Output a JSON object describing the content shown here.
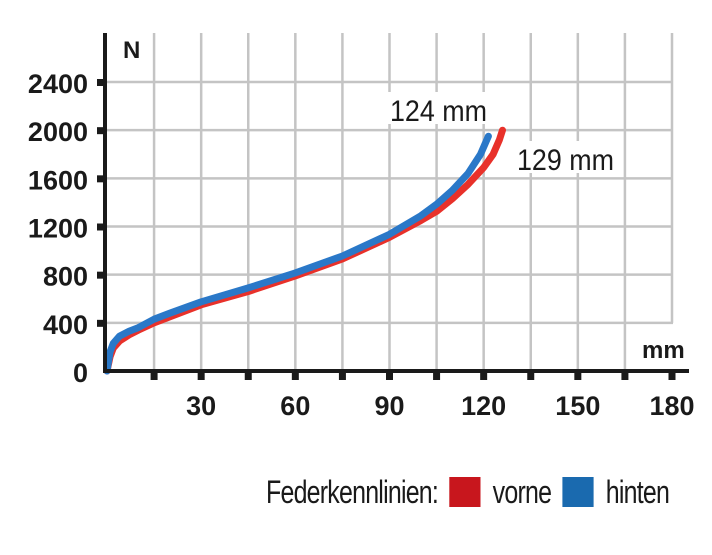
{
  "chart_data": {
    "type": "line",
    "title": "",
    "xlabel": "mm",
    "ylabel": "N",
    "xlim": [
      0,
      180
    ],
    "ylim": [
      0,
      2400
    ],
    "grid": true,
    "x_ticks": [
      0,
      15,
      30,
      45,
      60,
      75,
      90,
      105,
      120,
      135,
      150,
      165,
      180
    ],
    "x_tick_labels": [
      {
        "value": 30,
        "label": "30"
      },
      {
        "value": 60,
        "label": "60"
      },
      {
        "value": 90,
        "label": "90"
      },
      {
        "value": 120,
        "label": "120"
      },
      {
        "value": 150,
        "label": "150"
      },
      {
        "value": 180,
        "label": "180"
      }
    ],
    "y_ticks": [
      0,
      400,
      800,
      1200,
      1600,
      2000,
      2400
    ],
    "y_tick_labels": [
      "0",
      "400",
      "800",
      "1200",
      "1600",
      "2000",
      "2400"
    ],
    "legend_position": "bottom-right",
    "legend_title": "Federkennlinien:",
    "series": [
      {
        "name": "vorne",
        "color": "#e8312a",
        "swatch_color": "#c8161d",
        "end_label": "129 mm",
        "points": [
          [
            0,
            0
          ],
          [
            1,
            120
          ],
          [
            2,
            190
          ],
          [
            4,
            250
          ],
          [
            7,
            300
          ],
          [
            10,
            340
          ],
          [
            15,
            400
          ],
          [
            20,
            450
          ],
          [
            30,
            550
          ],
          [
            45,
            660
          ],
          [
            60,
            790
          ],
          [
            75,
            930
          ],
          [
            90,
            1110
          ],
          [
            100,
            1250
          ],
          [
            105,
            1325
          ],
          [
            110,
            1430
          ],
          [
            115,
            1550
          ],
          [
            120,
            1690
          ],
          [
            123,
            1800
          ],
          [
            125,
            1920
          ],
          [
            126,
            2000
          ]
        ]
      },
      {
        "name": "hinten",
        "color": "#2a78c8",
        "swatch_color": "#1a6aaf",
        "end_label": "124 mm",
        "points": [
          [
            0,
            0
          ],
          [
            1,
            160
          ],
          [
            2,
            230
          ],
          [
            4,
            290
          ],
          [
            7,
            330
          ],
          [
            10,
            360
          ],
          [
            15,
            430
          ],
          [
            20,
            480
          ],
          [
            30,
            575
          ],
          [
            45,
            690
          ],
          [
            60,
            815
          ],
          [
            75,
            955
          ],
          [
            90,
            1135
          ],
          [
            100,
            1290
          ],
          [
            105,
            1385
          ],
          [
            110,
            1500
          ],
          [
            115,
            1640
          ],
          [
            119,
            1800
          ],
          [
            121.5,
            1950
          ]
        ]
      }
    ]
  },
  "legend": {
    "title": "Federkennlinien:",
    "items": [
      {
        "label": "vorne",
        "color": "#c8161d"
      },
      {
        "label": "hinten",
        "color": "#1a6aaf"
      }
    ]
  }
}
